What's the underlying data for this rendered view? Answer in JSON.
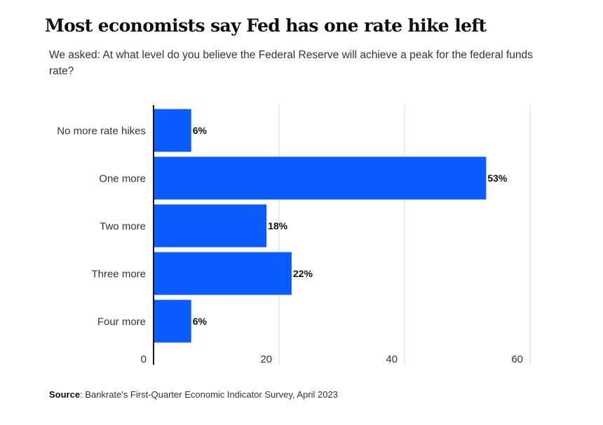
{
  "header": {
    "title": "Most economists say Fed has one rate hike left",
    "subtitle": "We asked: At what level do you believe the Federal Reserve will achieve a peak for the federal funds rate?"
  },
  "footer": {
    "source_label": "Source",
    "source_text": ": Bankrate's First-Quarter Economic Indicator Survey, April 2023"
  },
  "colors": {
    "bar": "#0b5cff",
    "grid": "#d9d9d9",
    "axis": "#111111",
    "label": "#333333",
    "value_label": "#111111"
  },
  "chart_data": {
    "type": "bar",
    "orientation": "horizontal",
    "categories": [
      "No more rate hikes",
      "One more",
      "Two more",
      "Three more",
      "Four more"
    ],
    "values": [
      6,
      53,
      18,
      22,
      6
    ],
    "value_labels": [
      "6%",
      "53%",
      "18%",
      "22%",
      "6%"
    ],
    "xlim": [
      0,
      60
    ],
    "xticks": [
      0,
      20,
      40,
      60
    ],
    "grid": true
  }
}
